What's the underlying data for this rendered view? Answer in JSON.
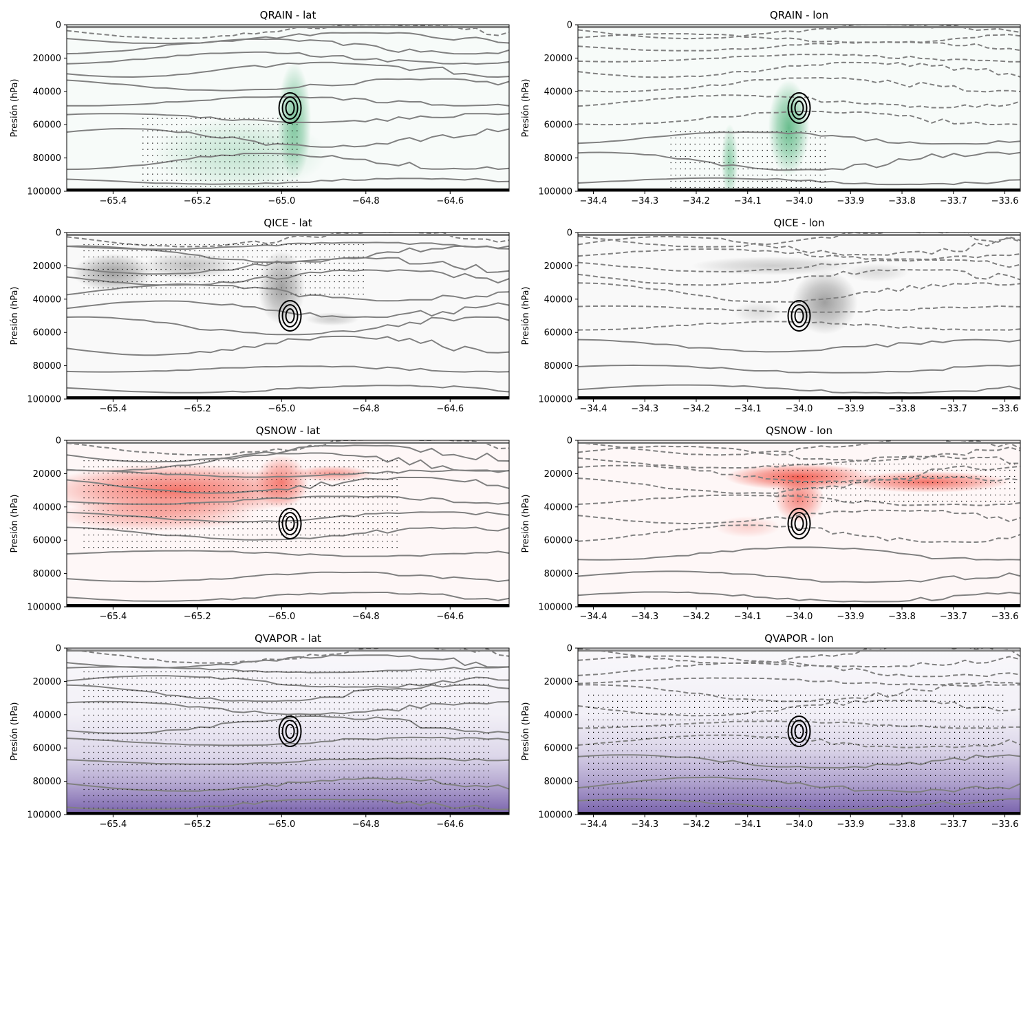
{
  "colors": {
    "QRAIN": "#2ca25f",
    "QICE": "#636363",
    "QSNOW": "#ef3b2c",
    "QVAPOR": "#6a51a3",
    "contour_gray": "#808080",
    "contour_black": "#000000"
  },
  "chart_data": [
    {
      "id": "qrain-lat",
      "type": "heatmap",
      "title": "QRAIN - lat",
      "cmap": "QRAIN",
      "ylabel": "Presión (hPa)",
      "ylim": [
        100000,
        0
      ],
      "yticks": [
        0,
        20000,
        40000,
        60000,
        80000,
        100000
      ],
      "xlim": [
        -65.51,
        -64.46
      ],
      "xticks": [
        -65.4,
        -65.2,
        -65.0,
        -64.8,
        -64.6
      ],
      "xtick_labels": [
        "−65.4",
        "−65.2",
        "−65.0",
        "−64.8",
        "−64.6"
      ],
      "field_blobs": [
        {
          "x": -65.1,
          "y": 78000,
          "sx": 0.13,
          "sy": 14000,
          "v": 0.25
        },
        {
          "x": -64.97,
          "y": 58000,
          "sx": 0.025,
          "sy": 22000,
          "v": 0.6
        }
      ],
      "stippling": {
        "x": [
          -65.33,
          -64.96
        ],
        "y": [
          56000,
          98000
        ]
      }
    },
    {
      "id": "qrain-lon",
      "type": "heatmap",
      "title": "QRAIN - lon",
      "cmap": "QRAIN",
      "ylabel": "Presión (hPa)",
      "ylim": [
        100000,
        0
      ],
      "yticks": [
        0,
        20000,
        40000,
        60000,
        80000,
        100000
      ],
      "xlim": [
        -34.43,
        -33.57
      ],
      "xticks": [
        -34.4,
        -34.3,
        -34.2,
        -34.1,
        -34.0,
        -33.9,
        -33.8,
        -33.7,
        -33.6
      ],
      "xtick_labels": [
        "−34.4",
        "−34.3",
        "−34.2",
        "−34.1",
        "−34.0",
        "−33.9",
        "−33.8",
        "−33.7",
        "−33.6"
      ],
      "field_blobs": [
        {
          "x": -34.135,
          "y": 82000,
          "sx": 0.01,
          "sy": 14000,
          "v": 0.5
        },
        {
          "x": -34.02,
          "y": 62000,
          "sx": 0.025,
          "sy": 18000,
          "v": 0.7
        }
      ],
      "stippling": {
        "x": [
          -34.25,
          -33.95
        ],
        "y": [
          64000,
          98000
        ]
      }
    },
    {
      "id": "qice-lat",
      "type": "heatmap",
      "title": "QICE - lat",
      "cmap": "QICE",
      "ylabel": "Presión (hPa)",
      "ylim": [
        100000,
        0
      ],
      "yticks": [
        0,
        20000,
        40000,
        60000,
        80000,
        100000
      ],
      "xlim": [
        -65.51,
        -64.46
      ],
      "xticks": [
        -65.4,
        -65.2,
        -65.0,
        -64.8,
        -64.6
      ],
      "xtick_labels": [
        "−65.4",
        "−65.2",
        "−65.0",
        "−64.8",
        "−64.6"
      ],
      "field_blobs": [
        {
          "x": -65.4,
          "y": 24000,
          "sx": 0.06,
          "sy": 7000,
          "v": 0.6
        },
        {
          "x": -65.22,
          "y": 20000,
          "sx": 0.07,
          "sy": 5000,
          "v": 0.4
        },
        {
          "x": -65.0,
          "y": 33000,
          "sx": 0.035,
          "sy": 14000,
          "v": 0.6
        },
        {
          "x": -64.88,
          "y": 52000,
          "sx": 0.04,
          "sy": 2500,
          "v": 0.3
        }
      ],
      "stippling": {
        "x": [
          -65.47,
          -64.8
        ],
        "y": [
          7000,
          38000
        ]
      }
    },
    {
      "id": "qice-lon",
      "type": "heatmap",
      "title": "QICE - lon",
      "cmap": "QICE",
      "ylabel": "Presión (hPa)",
      "ylim": [
        100000,
        0
      ],
      "yticks": [
        0,
        20000,
        40000,
        60000,
        80000,
        100000
      ],
      "xlim": [
        -34.43,
        -33.57
      ],
      "xticks": [
        -34.4,
        -34.3,
        -34.2,
        -34.1,
        -34.0,
        -33.9,
        -33.8,
        -33.7,
        -33.6
      ],
      "xtick_labels": [
        "−34.4",
        "−34.3",
        "−34.2",
        "−34.1",
        "−34.0",
        "−33.9",
        "−33.8",
        "−33.7",
        "−33.6"
      ],
      "field_blobs": [
        {
          "x": -33.95,
          "y": 42000,
          "sx": 0.04,
          "sy": 12000,
          "v": 0.6
        },
        {
          "x": -34.05,
          "y": 20000,
          "sx": 0.1,
          "sy": 3500,
          "v": 0.3
        },
        {
          "x": -33.85,
          "y": 24000,
          "sx": 0.04,
          "sy": 3500,
          "v": 0.2
        },
        {
          "x": -34.08,
          "y": 48000,
          "sx": 0.03,
          "sy": 4000,
          "v": 0.2
        }
      ],
      "stippling": null
    },
    {
      "id": "qsnow-lat",
      "type": "heatmap",
      "title": "QSNOW - lat",
      "cmap": "QSNOW",
      "ylabel": "Presión (hPa)",
      "ylim": [
        100000,
        0
      ],
      "yticks": [
        0,
        20000,
        40000,
        60000,
        80000,
        100000
      ],
      "xlim": [
        -65.51,
        -64.46
      ],
      "xticks": [
        -65.4,
        -65.2,
        -65.0,
        -64.8,
        -64.6
      ],
      "xtick_labels": [
        "−65.4",
        "−65.2",
        "−65.0",
        "−64.8",
        "−64.6"
      ],
      "field_blobs": [
        {
          "x": -65.25,
          "y": 30000,
          "sx": 0.2,
          "sy": 10000,
          "v": 0.7
        },
        {
          "x": -65.0,
          "y": 25000,
          "sx": 0.04,
          "sy": 10000,
          "v": 0.6
        },
        {
          "x": -64.88,
          "y": 20000,
          "sx": 0.06,
          "sy": 3000,
          "v": 0.5
        },
        {
          "x": -65.3,
          "y": 45000,
          "sx": 0.15,
          "sy": 6000,
          "v": 0.4
        }
      ],
      "stippling": {
        "x": [
          -65.47,
          -64.72
        ],
        "y": [
          12000,
          65000
        ]
      }
    },
    {
      "id": "qsnow-lon",
      "type": "heatmap",
      "title": "QSNOW - lon",
      "cmap": "QSNOW",
      "ylabel": "Presión (hPa)",
      "ylim": [
        100000,
        0
      ],
      "yticks": [
        0,
        20000,
        40000,
        60000,
        80000,
        100000
      ],
      "xlim": [
        -34.43,
        -33.57
      ],
      "xticks": [
        -34.4,
        -34.3,
        -34.2,
        -34.1,
        -34.0,
        -33.9,
        -33.8,
        -33.7,
        -33.6
      ],
      "xtick_labels": [
        "−34.4",
        "−34.3",
        "−34.2",
        "−34.1",
        "−34.0",
        "−33.9",
        "−33.8",
        "−33.7",
        "−33.6"
      ],
      "field_blobs": [
        {
          "x": -34.0,
          "y": 22000,
          "sx": 0.09,
          "sy": 5000,
          "v": 0.8
        },
        {
          "x": -33.75,
          "y": 25000,
          "sx": 0.1,
          "sy": 4000,
          "v": 0.7
        },
        {
          "x": -34.0,
          "y": 35000,
          "sx": 0.03,
          "sy": 9000,
          "v": 0.6
        },
        {
          "x": -34.1,
          "y": 52000,
          "sx": 0.04,
          "sy": 4000,
          "v": 0.2
        }
      ],
      "stippling": {
        "x": [
          -34.05,
          -33.58
        ],
        "y": [
          14000,
          38000
        ]
      }
    },
    {
      "id": "qvapor-lat",
      "type": "heatmap",
      "title": "QVAPOR - lat",
      "cmap": "QVAPOR",
      "ylabel": "Presión (hPa)",
      "ylim": [
        100000,
        0
      ],
      "yticks": [
        0,
        20000,
        40000,
        60000,
        80000,
        100000
      ],
      "xlim": [
        -65.51,
        -64.46
      ],
      "xticks": [
        -65.4,
        -65.2,
        -65.0,
        -64.8,
        -64.6
      ],
      "xtick_labels": [
        "−65.4",
        "−65.2",
        "−65.0",
        "−64.8",
        "−64.6"
      ],
      "vertical_gradient": [
        [
          0,
          0.0
        ],
        [
          40000,
          0.05
        ],
        [
          65000,
          0.2
        ],
        [
          80000,
          0.45
        ],
        [
          100000,
          0.9
        ]
      ],
      "stippling": {
        "x": [
          -65.47,
          -64.5
        ],
        "y": [
          14000,
          98000
        ]
      }
    },
    {
      "id": "qvapor-lon",
      "type": "heatmap",
      "title": "QVAPOR - lon",
      "cmap": "QVAPOR",
      "ylabel": "Presión (hPa)",
      "ylim": [
        100000,
        0
      ],
      "yticks": [
        0,
        20000,
        40000,
        60000,
        80000,
        100000
      ],
      "xlim": [
        -34.43,
        -33.57
      ],
      "xticks": [
        -34.4,
        -34.3,
        -34.2,
        -34.1,
        -34.0,
        -33.9,
        -33.8,
        -33.7,
        -33.6
      ],
      "xtick_labels": [
        "−34.4",
        "−34.3",
        "−34.2",
        "−34.1",
        "−34.0",
        "−33.9",
        "−33.8",
        "−33.7",
        "−33.6"
      ],
      "vertical_gradient": [
        [
          0,
          0.0
        ],
        [
          40000,
          0.05
        ],
        [
          60000,
          0.2
        ],
        [
          80000,
          0.5
        ],
        [
          100000,
          0.9
        ]
      ],
      "stippling": {
        "x": [
          -34.41,
          -33.6
        ],
        "y": [
          28000,
          98000
        ]
      }
    }
  ]
}
